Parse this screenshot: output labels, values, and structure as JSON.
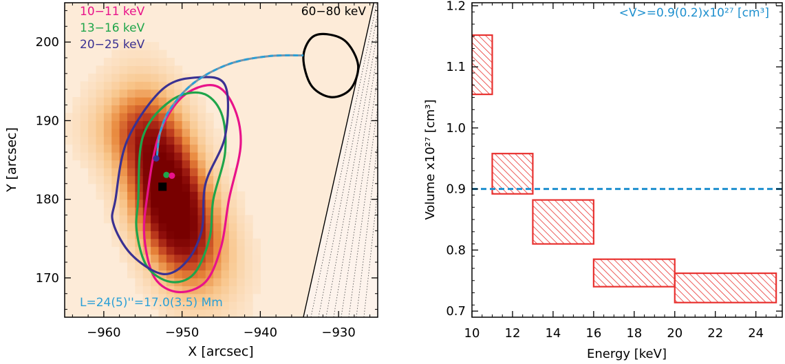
{
  "chart_data": [
    {
      "type": "heatmap",
      "xlabel": "X [arcsec]",
      "ylabel": "Y [arcsec]",
      "xlim": [
        -965,
        -925
      ],
      "ylim": [
        165,
        205
      ],
      "xticks": [
        -960,
        -950,
        -940,
        -930
      ],
      "yticks": [
        170,
        180,
        190,
        200
      ],
      "xtick_labels": [
        "−960",
        "−950",
        "−940",
        "−930"
      ],
      "ytick_labels": [
        "170",
        "180",
        "190",
        "200"
      ],
      "colors": {
        "background": "#fdebd8",
        "peak": "#7a0000",
        "limb": "#000000"
      },
      "limb_line": [
        [
          -934.5,
          165
        ],
        [
          -925.5,
          205
        ]
      ],
      "legend": [
        {
          "label": "10−11 keV",
          "color": "#e8128a",
          "position": "top-left"
        },
        {
          "label": "13−16 keV",
          "color": "#1fa54a",
          "position": "top-left"
        },
        {
          "label": "20−25 keV",
          "color": "#3a3192",
          "position": "top-left"
        },
        {
          "label": "60−80 keV",
          "color": "#000000",
          "position": "top-right"
        }
      ],
      "contours": [
        {
          "label": "10−11 keV",
          "color": "#e8128a",
          "points": [
            [
              -954.5,
              180
            ],
            [
              -953,
              188
            ],
            [
              -950,
              193
            ],
            [
              -946,
              194.5
            ],
            [
              -943.5,
              192
            ],
            [
              -942.5,
              187
            ],
            [
              -944,
              180
            ],
            [
              -945,
              174
            ],
            [
              -947,
              169.5
            ],
            [
              -950.5,
              168.2
            ],
            [
              -953.5,
              170
            ],
            [
              -954.8,
              175
            ]
          ]
        },
        {
          "label": "13−16 keV",
          "color": "#1fa54a",
          "points": [
            [
              -955.6,
              180
            ],
            [
              -955,
              188
            ],
            [
              -951.5,
              192.5
            ],
            [
              -947.5,
              193.5
            ],
            [
              -945,
              191
            ],
            [
              -944.5,
              186
            ],
            [
              -946,
              180
            ],
            [
              -946.5,
              175
            ],
            [
              -948.5,
              170.5
            ],
            [
              -951.5,
              169.5
            ],
            [
              -954.5,
              171.5
            ],
            [
              -955.8,
              176
            ]
          ]
        },
        {
          "label": "20−25 keV",
          "color": "#3a3192",
          "points": [
            [
              -958.5,
              180
            ],
            [
              -957,
              187.5
            ],
            [
              -952.5,
              194
            ],
            [
              -948,
              195.5
            ],
            [
              -944.5,
              194.5
            ],
            [
              -944.5,
              188
            ],
            [
              -947,
              182
            ],
            [
              -947.5,
              176
            ],
            [
              -949.5,
              172
            ],
            [
              -952.5,
              170.5
            ],
            [
              -956.5,
              173
            ],
            [
              -958.8,
              177
            ]
          ]
        },
        {
          "label": "60−80 keV",
          "color": "#000000",
          "points": [
            [
              -931.5,
              201
            ],
            [
              -929,
              200
            ],
            [
              -927.5,
              197
            ],
            [
              -928.5,
              194
            ],
            [
              -931,
              193
            ],
            [
              -933.5,
              194.5
            ],
            [
              -934.5,
              198
            ],
            [
              -933.5,
              200.5
            ]
          ]
        }
      ],
      "centroids": [
        {
          "label": "20−25 keV",
          "color": "#3a3192",
          "x": -953.3,
          "y": 185.2
        },
        {
          "label": "13−16 keV",
          "color": "#1fa54a",
          "x": -952.0,
          "y": 183.1
        },
        {
          "label": "10−11 keV",
          "color": "#e8128a",
          "x": -951.3,
          "y": 183.0
        },
        {
          "label": "peak",
          "color": "#000000",
          "x": -952.5,
          "y": 181.6
        }
      ],
      "loop_curve": {
        "color": "#2a9fd6",
        "points": [
          [
            -953.2,
            185.5
          ],
          [
            -952.8,
            188.5
          ],
          [
            -951.5,
            191.5
          ],
          [
            -948.5,
            194.8
          ],
          [
            -944,
            197.2
          ],
          [
            -939,
            198.2
          ],
          [
            -934.5,
            198.3
          ]
        ]
      },
      "annotation": {
        "text": "L=24(5)''=17.0(3.5) Mm",
        "color": "#2a9fd6"
      }
    },
    {
      "type": "bar",
      "xlabel": "Energy [keV]",
      "ylabel": "Volume x10²⁷ [cm³]",
      "xlim": [
        10,
        25.3
      ],
      "ylim": [
        0.69,
        1.205
      ],
      "xticks": [
        10,
        12,
        14,
        16,
        18,
        20,
        22,
        24
      ],
      "yticks": [
        0.7,
        0.8,
        0.9,
        1.0,
        1.1,
        1.2
      ],
      "xtick_labels": [
        "10",
        "12",
        "14",
        "16",
        "18",
        "20",
        "22",
        "24"
      ],
      "ytick_labels": [
        "0.7",
        "0.8",
        "0.9",
        "1.0",
        "1.1",
        "1.2"
      ],
      "fill": "hatched",
      "color": "#e8312f",
      "bins": [
        {
          "x0": 10,
          "x1": 11,
          "low": 1.055,
          "high": 1.152
        },
        {
          "x0": 11,
          "x1": 13,
          "low": 0.892,
          "high": 0.958
        },
        {
          "x0": 13,
          "x1": 16,
          "low": 0.81,
          "high": 0.882
        },
        {
          "x0": 16,
          "x1": 20,
          "low": 0.74,
          "high": 0.785
        },
        {
          "x0": 20,
          "x1": 25,
          "low": 0.714,
          "high": 0.762
        }
      ],
      "mean_line": {
        "y": 0.9,
        "color": "#1d8fce",
        "style": "dashed"
      },
      "annotation": {
        "text": "<V>=0.9(0.2)x10²⁷ [cm³]",
        "color": "#1d8fce"
      }
    }
  ]
}
